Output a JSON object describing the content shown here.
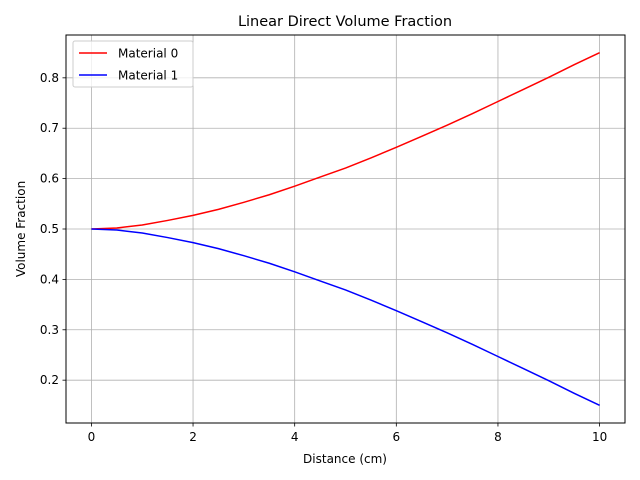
{
  "chart_data": {
    "type": "line",
    "title": "Linear Direct Volume Fraction",
    "xlabel": "Distance (cm)",
    "ylabel": "Volume Fraction",
    "xlim": [
      -0.5,
      10.5
    ],
    "ylim": [
      0.115,
      0.885
    ],
    "xticks": [
      0,
      2,
      4,
      6,
      8,
      10
    ],
    "yticks": [
      0.2,
      0.3,
      0.4,
      0.5,
      0.6,
      0.7,
      0.8
    ],
    "grid": true,
    "legend_position": "top-left",
    "x": [
      0,
      0.5,
      1,
      1.5,
      2,
      2.5,
      3,
      3.5,
      4,
      4.5,
      5,
      5.5,
      6,
      6.5,
      7,
      7.5,
      8,
      8.5,
      9,
      9.5,
      10
    ],
    "series": [
      {
        "name": "Material 0",
        "color": "#ff0000",
        "values": [
          0.5,
          0.502,
          0.508,
          0.517,
          0.527,
          0.539,
          0.553,
          0.568,
          0.585,
          0.603,
          0.621,
          0.641,
          0.662,
          0.684,
          0.706,
          0.729,
          0.753,
          0.777,
          0.801,
          0.826,
          0.85
        ]
      },
      {
        "name": "Material 1",
        "color": "#0000ff",
        "values": [
          0.5,
          0.498,
          0.492,
          0.483,
          0.473,
          0.461,
          0.447,
          0.432,
          0.415,
          0.397,
          0.379,
          0.359,
          0.338,
          0.316,
          0.294,
          0.271,
          0.247,
          0.223,
          0.199,
          0.174,
          0.15
        ]
      }
    ]
  }
}
